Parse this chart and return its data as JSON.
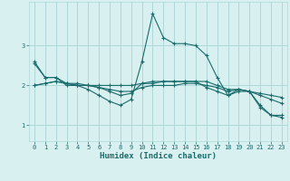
{
  "xlabel": "Humidex (Indice chaleur)",
  "ylabel": "",
  "bg_color": "#d8f0f0",
  "grid_color": "#b0d8d8",
  "line_color": "#1a6b6b",
  "xlim": [
    -0.5,
    23.5
  ],
  "ylim": [
    0.6,
    4.1
  ],
  "yticks": [
    1,
    2,
    3
  ],
  "xticks": [
    0,
    1,
    2,
    3,
    4,
    5,
    6,
    7,
    8,
    9,
    10,
    11,
    12,
    13,
    14,
    15,
    16,
    17,
    18,
    19,
    20,
    21,
    22,
    23
  ],
  "series": [
    {
      "x": [
        0,
        1,
        2,
        3,
        4,
        5,
        6,
        7,
        8,
        9,
        10,
        11,
        12,
        13,
        14,
        15,
        16,
        17,
        18,
        19,
        20,
        21,
        22,
        23
      ],
      "y": [
        2.6,
        2.2,
        2.2,
        2.0,
        2.0,
        1.9,
        1.75,
        1.6,
        1.5,
        1.65,
        2.6,
        3.8,
        3.2,
        3.05,
        3.05,
        3.0,
        2.75,
        2.2,
        1.75,
        1.9,
        1.85,
        1.5,
        1.25,
        1.25
      ]
    },
    {
      "x": [
        0,
        1,
        2,
        3,
        4,
        5,
        6,
        7,
        8,
        9,
        10,
        11,
        12,
        13,
        14,
        15,
        16,
        17,
        18,
        19,
        20,
        21,
        22,
        23
      ],
      "y": [
        2.0,
        2.05,
        2.1,
        2.05,
        2.0,
        2.0,
        2.0,
        2.0,
        2.0,
        2.0,
        2.05,
        2.05,
        2.1,
        2.1,
        2.1,
        2.1,
        2.1,
        2.0,
        1.9,
        1.9,
        1.85,
        1.8,
        1.75,
        1.7
      ]
    },
    {
      "x": [
        0,
        1,
        2,
        3,
        4,
        5,
        6,
        7,
        8,
        9,
        10,
        11,
        12,
        13,
        14,
        15,
        16,
        17,
        18,
        19,
        20,
        21,
        22,
        23
      ],
      "y": [
        2.0,
        2.05,
        2.1,
        2.05,
        2.0,
        2.0,
        1.95,
        1.9,
        1.85,
        1.85,
        1.95,
        2.0,
        2.0,
        2.0,
        2.05,
        2.05,
        2.0,
        1.95,
        1.85,
        1.9,
        1.85,
        1.75,
        1.65,
        1.55
      ]
    },
    {
      "x": [
        0,
        1,
        2,
        3,
        4,
        5,
        6,
        7,
        8,
        9,
        10,
        11,
        12,
        13,
        14,
        15,
        16,
        17,
        18,
        19,
        20,
        21,
        22,
        23
      ],
      "y": [
        2.55,
        2.2,
        2.2,
        2.05,
        2.05,
        2.0,
        1.95,
        1.85,
        1.75,
        1.8,
        2.05,
        2.1,
        2.1,
        2.1,
        2.1,
        2.1,
        1.95,
        1.85,
        1.75,
        1.85,
        1.85,
        1.45,
        1.25,
        1.2
      ]
    }
  ]
}
